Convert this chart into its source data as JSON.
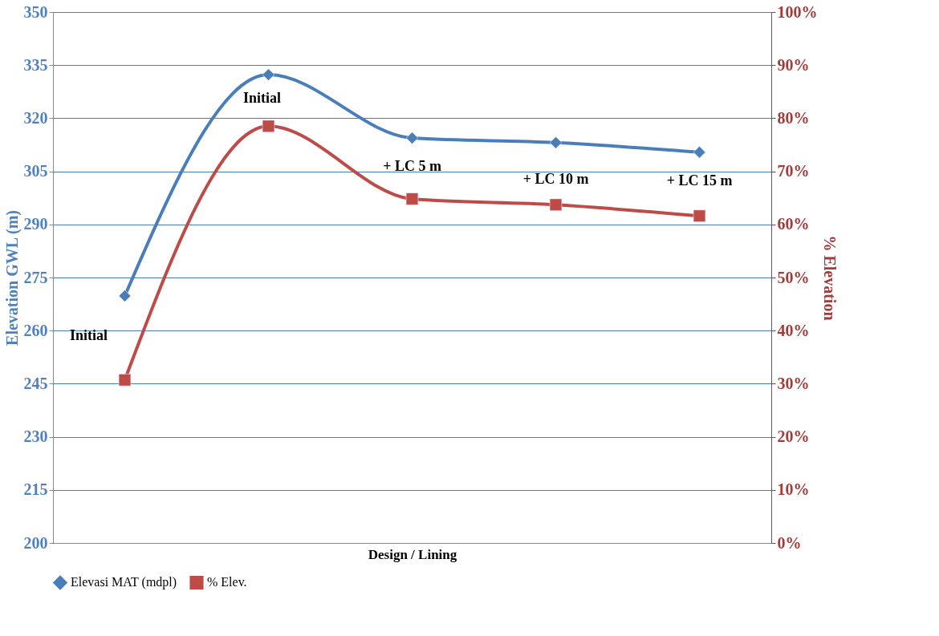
{
  "chart_data": {
    "type": "line",
    "xlabel": "Design / Lining",
    "ylabel": "Elevation GWL (m)",
    "y2label": "% Elevation",
    "categories": [
      null,
      null,
      null,
      null,
      null
    ],
    "series": [
      {
        "name": "Elevasi MAT (mdpl)",
        "color": "#4a7ebb",
        "marker": "diamond",
        "values": [
          269.8,
          332.3,
          314.4,
          313.1,
          310.4
        ]
      },
      {
        "name": "% Elev.",
        "color": "#be4b48",
        "marker": "square",
        "axis": "y2",
        "values": [
          30.7,
          78.5,
          64.8,
          63.7,
          61.6
        ]
      }
    ],
    "ylim": [
      200,
      350
    ],
    "yticks": [
      200,
      215,
      230,
      245,
      260,
      275,
      290,
      305,
      320,
      335,
      350
    ],
    "y2lim": [
      0,
      100
    ],
    "y2ticks": [
      {
        "value": 0,
        "label": "0%"
      },
      {
        "value": 10,
        "label": "10%"
      },
      {
        "value": 20,
        "label": "20%"
      },
      {
        "value": 30,
        "label": "30%"
      },
      {
        "value": 40,
        "label": "40%"
      },
      {
        "value": 50,
        "label": "50%"
      },
      {
        "value": 60,
        "label": "60%"
      },
      {
        "value": 70,
        "label": "70%"
      },
      {
        "value": 80,
        "label": "80%"
      },
      {
        "value": 90,
        "label": "90%"
      },
      {
        "value": 100,
        "label": "100%"
      }
    ],
    "annotations": [
      "Initial",
      "Initial",
      "+ LC 5 m",
      "+ LC 10 m",
      "+ LC 15 m"
    ],
    "grid": "y",
    "legend": "bottom",
    "line_style": "solid"
  }
}
